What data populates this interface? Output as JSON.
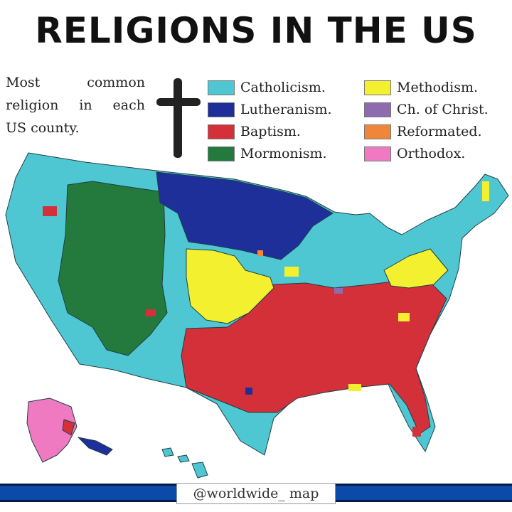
{
  "title": "RELIGIONS IN THE US",
  "description": {
    "line1": "Most common",
    "line2": "religion in each",
    "line3": "US county."
  },
  "legend": [
    {
      "label": "Catholicism.",
      "color": "#4fc7d3"
    },
    {
      "label": "Lutheranism.",
      "color": "#1f2f9a"
    },
    {
      "label": "Baptism.",
      "color": "#d3303a"
    },
    {
      "label": "Mormonism.",
      "color": "#237a3c"
    },
    {
      "label": "Methodism.",
      "color": "#f3f030"
    },
    {
      "label": "Ch. of Christ.",
      "color": "#8e6bb0"
    },
    {
      "label": "Reformated.",
      "color": "#f0863a"
    },
    {
      "label": "Orthodox.",
      "color": "#f07ac2"
    }
  ],
  "credit": "@worldwide_ map",
  "icons": {
    "cross": "christian-cross-icon"
  }
}
